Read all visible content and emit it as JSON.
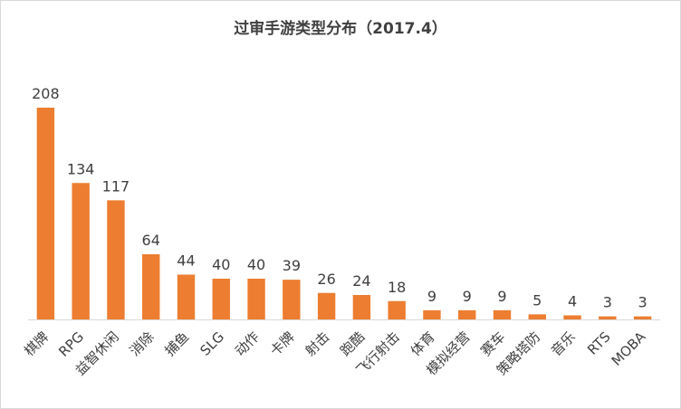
{
  "chart_data": {
    "type": "bar",
    "title": "过审手游类型分布（2017.4）",
    "categories": [
      "棋牌",
      "RPG",
      "益智休闲",
      "消除",
      "捕鱼",
      "SLG",
      "动作",
      "卡牌",
      "射击",
      "跑酷",
      "飞行射击",
      "体育",
      "模拟经营",
      "赛车",
      "策略塔防",
      "音乐",
      "RTS",
      "MOBA"
    ],
    "values": [
      208,
      134,
      117,
      64,
      44,
      40,
      40,
      39,
      26,
      24,
      18,
      9,
      9,
      9,
      5,
      4,
      3,
      3
    ],
    "xlabel": "",
    "ylabel": "",
    "ylim": [
      0,
      208
    ],
    "grid": false,
    "bar_color": "#ed7d31",
    "axis_color": "#d9d9d9",
    "text_color": "#404040"
  }
}
